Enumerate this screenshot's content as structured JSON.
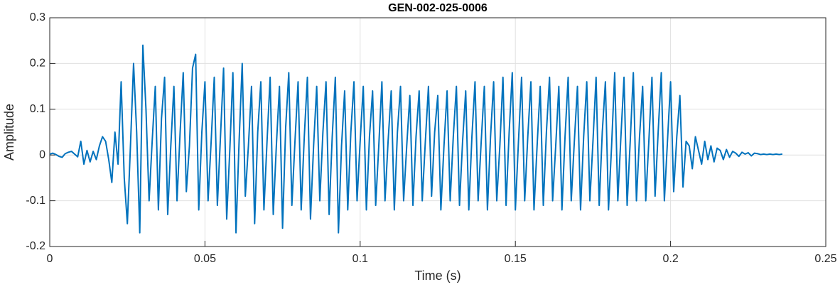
{
  "chart_data": {
    "type": "line",
    "title": "GEN-002-025-0006",
    "x_label": "Time (s)",
    "y_label": "Amplitude",
    "color": "#0072BD",
    "grid": true,
    "xlim": [
      0,
      0.25
    ],
    "xticks": [
      0,
      0.05,
      0.1,
      0.15,
      0.2,
      0.25
    ],
    "ylim": [
      -0.2,
      0.3
    ],
    "yticks": [
      -0.2,
      -0.1,
      0,
      0.1,
      0.2,
      0.3
    ],
    "x": [
      0,
      0.001,
      0.002,
      0.003,
      0.004,
      0.005,
      0.006,
      0.007,
      0.008,
      0.009,
      0.01,
      0.011,
      0.012,
      0.013,
      0.014,
      0.015,
      0.016,
      0.017,
      0.018,
      0.019,
      0.02,
      0.021,
      0.022,
      0.023,
      0.024,
      0.025,
      0.026,
      0.027,
      0.028,
      0.029,
      0.03,
      0.031,
      0.032,
      0.033,
      0.034,
      0.035,
      0.036,
      0.037,
      0.038,
      0.039,
      0.04,
      0.041,
      0.042,
      0.043,
      0.044,
      0.045,
      0.046,
      0.047,
      0.048,
      0.049,
      0.05,
      0.051,
      0.052,
      0.053,
      0.054,
      0.055,
      0.056,
      0.057,
      0.058,
      0.059,
      0.06,
      0.061,
      0.062,
      0.063,
      0.064,
      0.065,
      0.066,
      0.067,
      0.068,
      0.069,
      0.07,
      0.071,
      0.072,
      0.073,
      0.074,
      0.075,
      0.076,
      0.077,
      0.078,
      0.079,
      0.08,
      0.081,
      0.082,
      0.083,
      0.084,
      0.085,
      0.086,
      0.087,
      0.088,
      0.089,
      0.09,
      0.091,
      0.092,
      0.093,
      0.094,
      0.095,
      0.096,
      0.097,
      0.098,
      0.099,
      0.1,
      0.101,
      0.102,
      0.103,
      0.104,
      0.105,
      0.106,
      0.107,
      0.108,
      0.109,
      0.11,
      0.111,
      0.112,
      0.113,
      0.114,
      0.115,
      0.116,
      0.117,
      0.118,
      0.119,
      0.12,
      0.121,
      0.122,
      0.123,
      0.124,
      0.125,
      0.126,
      0.127,
      0.128,
      0.129,
      0.13,
      0.131,
      0.132,
      0.133,
      0.134,
      0.135,
      0.136,
      0.137,
      0.138,
      0.139,
      0.14,
      0.141,
      0.142,
      0.143,
      0.144,
      0.145,
      0.146,
      0.147,
      0.148,
      0.149,
      0.15,
      0.151,
      0.152,
      0.153,
      0.154,
      0.155,
      0.156,
      0.157,
      0.158,
      0.159,
      0.16,
      0.161,
      0.162,
      0.163,
      0.164,
      0.165,
      0.166,
      0.167,
      0.168,
      0.169,
      0.17,
      0.171,
      0.172,
      0.173,
      0.174,
      0.175,
      0.176,
      0.177,
      0.178,
      0.179,
      0.18,
      0.181,
      0.182,
      0.183,
      0.184,
      0.185,
      0.186,
      0.187,
      0.188,
      0.189,
      0.19,
      0.191,
      0.192,
      0.193,
      0.194,
      0.195,
      0.196,
      0.197,
      0.198,
      0.199,
      0.2,
      0.201,
      0.202,
      0.203,
      0.204,
      0.205,
      0.206,
      0.207,
      0.208,
      0.209,
      0.21,
      0.211,
      0.212,
      0.213,
      0.214,
      0.215,
      0.216,
      0.217,
      0.218,
      0.219,
      0.22,
      0.221,
      0.222,
      0.223,
      0.224,
      0.225,
      0.226,
      0.227,
      0.228,
      0.229,
      0.23,
      0.231,
      0.232,
      0.233,
      0.234,
      0.235,
      0.236
    ],
    "values": [
      0.002,
      0.004,
      0.001,
      -0.003,
      -0.005,
      0.003,
      0.006,
      0.008,
      0.002,
      -0.004,
      0.03,
      -0.02,
      0.01,
      -0.015,
      0.008,
      -0.01,
      0.02,
      0.04,
      0.03,
      -0.01,
      -0.06,
      0.05,
      -0.02,
      0.16,
      -0.05,
      -0.15,
      0.02,
      0.2,
      0.05,
      -0.17,
      0.24,
      0.1,
      -0.1,
      0.03,
      0.15,
      -0.12,
      0.08,
      0.17,
      -0.13,
      0.02,
      0.15,
      -0.1,
      0.05,
      0.18,
      -0.08,
      0.02,
      0.19,
      0.22,
      -0.12,
      0.05,
      0.16,
      -0.1,
      0.03,
      0.17,
      -0.11,
      0.04,
      0.19,
      -0.14,
      0.01,
      0.18,
      -0.17,
      0.03,
      0.2,
      -0.09,
      0.02,
      0.15,
      -0.15,
      0.05,
      0.16,
      -0.12,
      0.03,
      0.17,
      -0.13,
      0.02,
      0.15,
      -0.16,
      0.06,
      0.18,
      -0.11,
      0.03,
      0.16,
      -0.12,
      0.04,
      0.17,
      -0.14,
      0.02,
      0.15,
      -0.1,
      0.05,
      0.16,
      -0.13,
      0.04,
      0.17,
      -0.17,
      0.02,
      0.14,
      -0.12,
      0.05,
      0.16,
      -0.1,
      0.03,
      0.15,
      -0.12,
      0.04,
      0.14,
      -0.11,
      0.02,
      0.16,
      -0.1,
      0.03,
      0.14,
      -0.12,
      0.05,
      0.15,
      -0.1,
      0.02,
      0.13,
      -0.11,
      0.04,
      0.14,
      -0.1,
      0.03,
      0.15,
      -0.09,
      0.05,
      0.13,
      -0.12,
      0.02,
      0.14,
      -0.1,
      0.04,
      0.15,
      -0.11,
      0.03,
      0.14,
      -0.12,
      0.04,
      0.16,
      -0.1,
      0.03,
      0.15,
      -0.12,
      0.04,
      0.16,
      -0.1,
      0.02,
      0.17,
      -0.11,
      0.05,
      0.18,
      -0.12,
      0.03,
      0.17,
      -0.1,
      0.04,
      0.16,
      -0.12,
      0.02,
      0.15,
      -0.11,
      0.05,
      0.17,
      -0.1,
      0.02,
      0.15,
      -0.12,
      0.04,
      0.17,
      -0.1,
      0.03,
      0.15,
      -0.12,
      0.04,
      0.16,
      -0.1,
      0.03,
      0.17,
      -0.11,
      0.05,
      0.16,
      -0.12,
      0.02,
      0.18,
      -0.1,
      0.04,
      0.17,
      -0.11,
      0.03,
      0.18,
      -0.1,
      0.04,
      0.15,
      -0.1,
      0.03,
      0.17,
      -0.09,
      0.05,
      0.18,
      -0.1,
      0.03,
      0.16,
      -0.08,
      0.04,
      0.13,
      -0.07,
      0.03,
      0.02,
      -0.03,
      0.04,
      0.01,
      -0.02,
      0.03,
      -0.01,
      0.02,
      -0.015,
      0.015,
      0.01,
      -0.01,
      0.012,
      -0.005,
      0.008,
      0.004,
      -0.003,
      0.006,
      0.002,
      0.005,
      -0.002,
      0.004,
      0.003,
      0.001,
      0.002,
      0.001,
      0.002,
      0.001,
      0.002,
      0.001,
      0.002
    ]
  }
}
